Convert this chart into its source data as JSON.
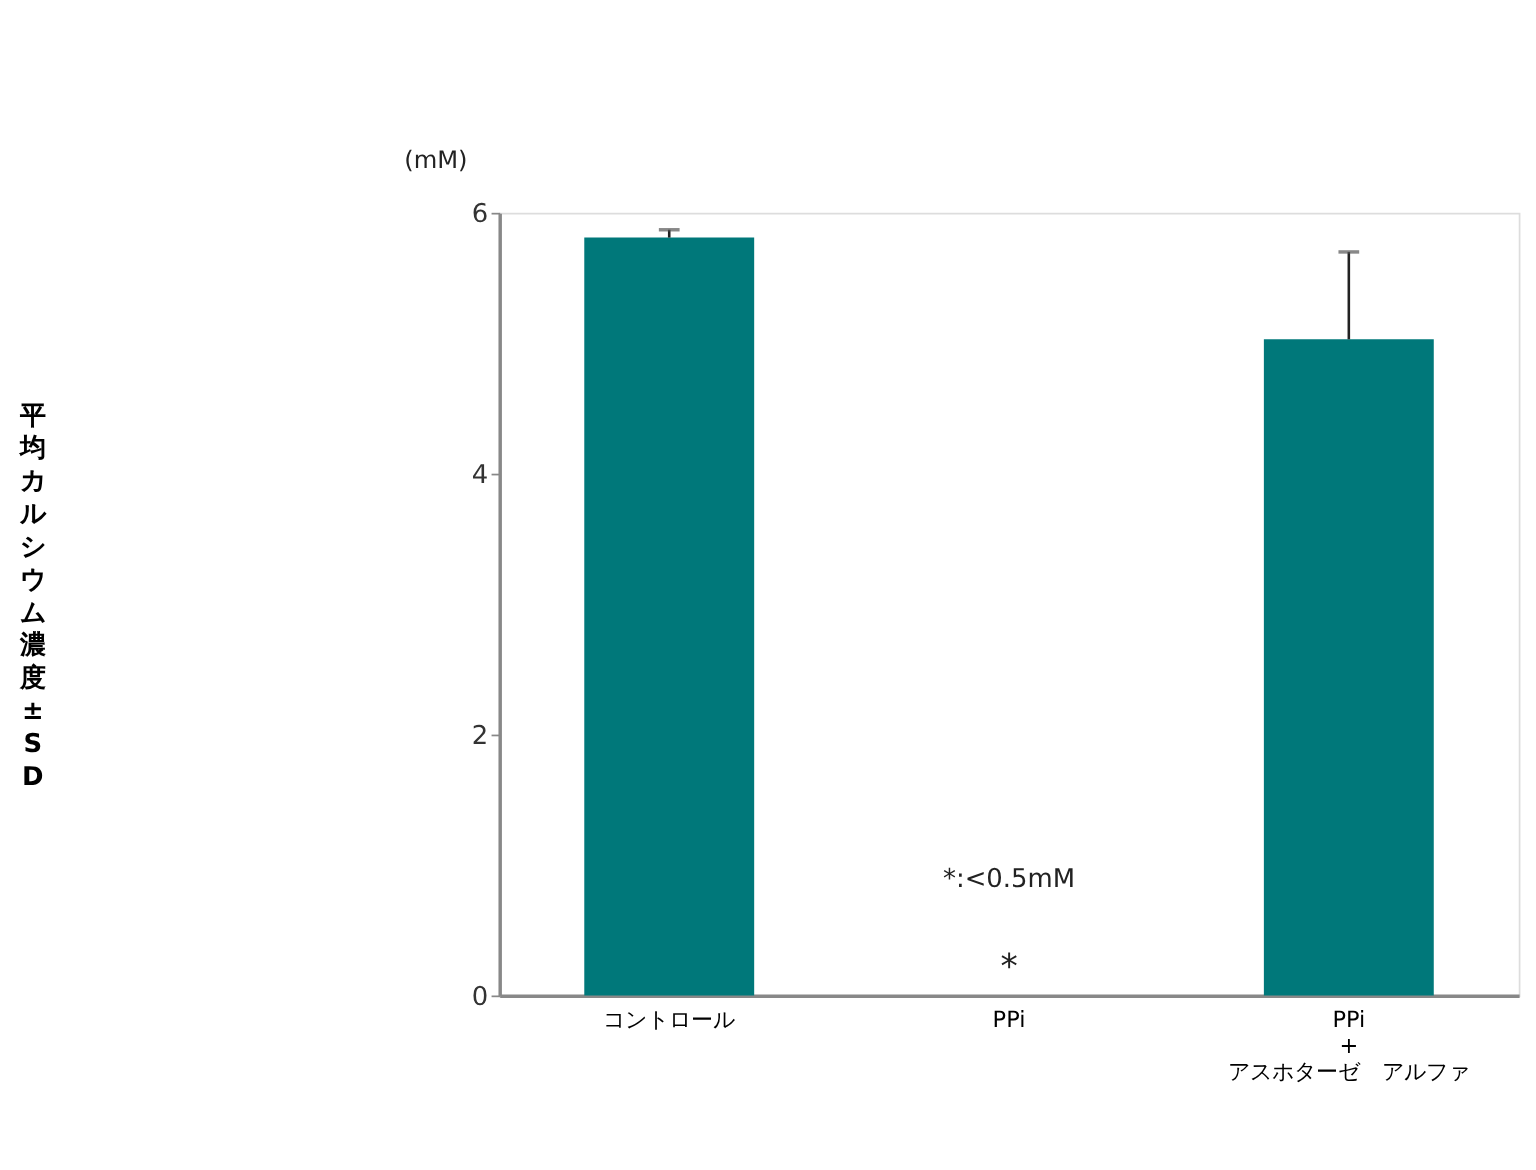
{
  "chart_data": {
    "type": "bar",
    "ylabel": "平均カルシウム濃度±SD",
    "categories": [
      "コントロール",
      "PPi",
      "PPi\n+\nアスホターゼ　アルファ"
    ],
    "values": [
      5.81,
      null,
      5.03
    ],
    "errors": [
      0.06,
      null,
      0.67
    ],
    "color": "#00787a",
    "ylim": [
      0,
      6
    ],
    "yticks": [
      0,
      2,
      4,
      6
    ],
    "grid": false,
    "annotations": [
      "(mM)",
      "*:<0.5mM",
      "*"
    ]
  }
}
